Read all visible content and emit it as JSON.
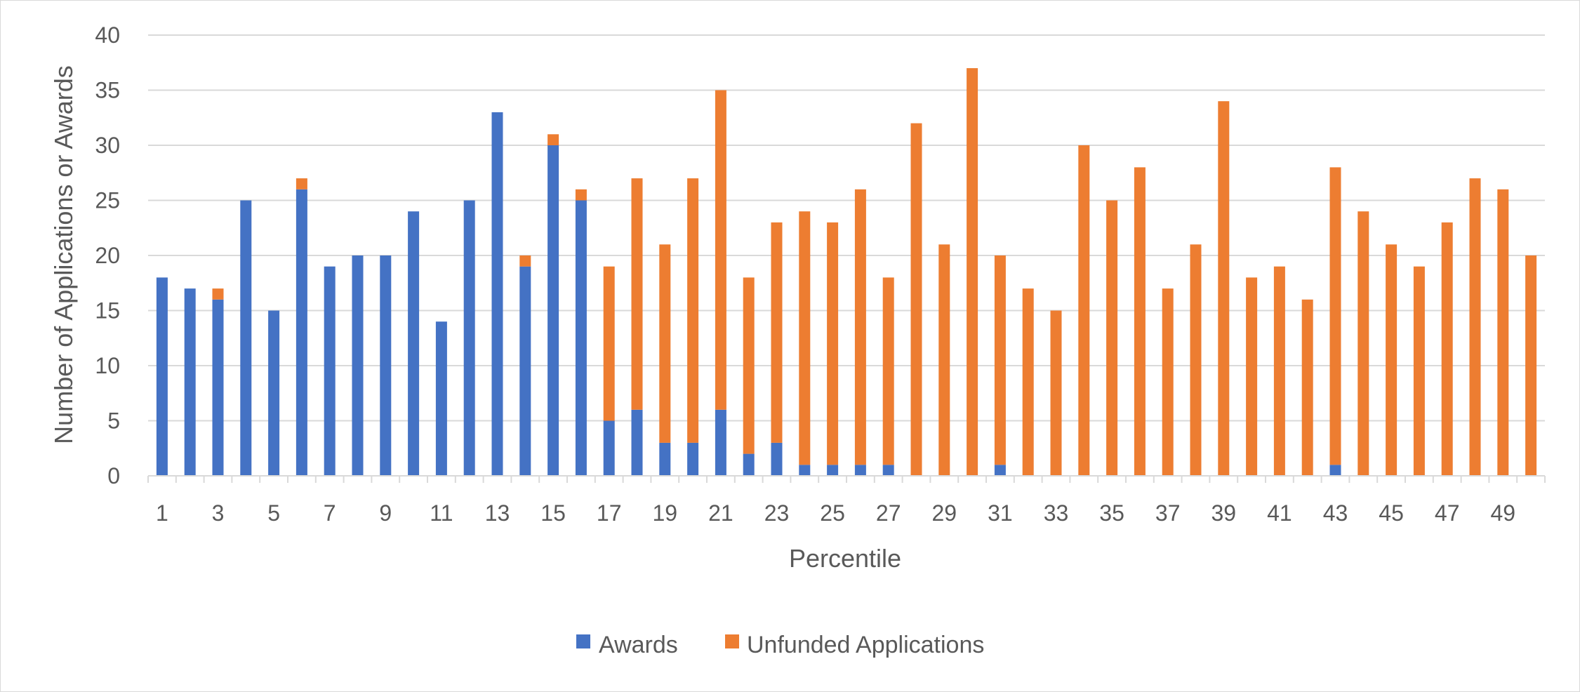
{
  "chart_data": {
    "type": "bar",
    "stacked": true,
    "title": "",
    "xlabel": "Percentile",
    "ylabel": "Number of Applications or Awards",
    "ylim": [
      0,
      40
    ],
    "y_ticks": [
      0,
      5,
      10,
      15,
      20,
      25,
      30,
      35,
      40
    ],
    "grid": true,
    "legend_position": "bottom",
    "categories": [
      1,
      2,
      3,
      4,
      5,
      6,
      7,
      8,
      9,
      10,
      11,
      12,
      13,
      14,
      15,
      16,
      17,
      18,
      19,
      20,
      21,
      22,
      23,
      24,
      25,
      26,
      27,
      28,
      29,
      30,
      31,
      32,
      33,
      34,
      35,
      36,
      37,
      38,
      39,
      40,
      41,
      42,
      43,
      44,
      45,
      46,
      47,
      48,
      49,
      50
    ],
    "x_tick_labels": [
      "1",
      "3",
      "5",
      "7",
      "9",
      "11",
      "13",
      "15",
      "17",
      "19",
      "21",
      "23",
      "25",
      "27",
      "29",
      "31",
      "33",
      "35",
      "37",
      "39",
      "41",
      "43",
      "45",
      "47",
      "49"
    ],
    "series": [
      {
        "name": "Awards",
        "color": "#4472C4",
        "values": [
          18,
          17,
          16,
          25,
          15,
          26,
          19,
          20,
          20,
          24,
          14,
          25,
          33,
          19,
          30,
          25,
          5,
          6,
          3,
          3,
          6,
          2,
          3,
          1,
          1,
          1,
          1,
          0,
          0,
          0,
          1,
          0,
          0,
          0,
          0,
          0,
          0,
          0,
          0,
          0,
          0,
          0,
          1,
          0,
          0,
          0,
          0,
          0,
          0,
          0
        ]
      },
      {
        "name": "Unfunded Applications",
        "color": "#ED7D31",
        "values": [
          0,
          0,
          1,
          0,
          0,
          1,
          0,
          0,
          0,
          0,
          0,
          0,
          0,
          1,
          1,
          1,
          14,
          21,
          18,
          24,
          29,
          16,
          20,
          23,
          22,
          25,
          17,
          32,
          21,
          37,
          19,
          17,
          15,
          30,
          25,
          28,
          17,
          21,
          34,
          18,
          19,
          16,
          27,
          24,
          21,
          19,
          23,
          27,
          26,
          20
        ]
      }
    ]
  }
}
